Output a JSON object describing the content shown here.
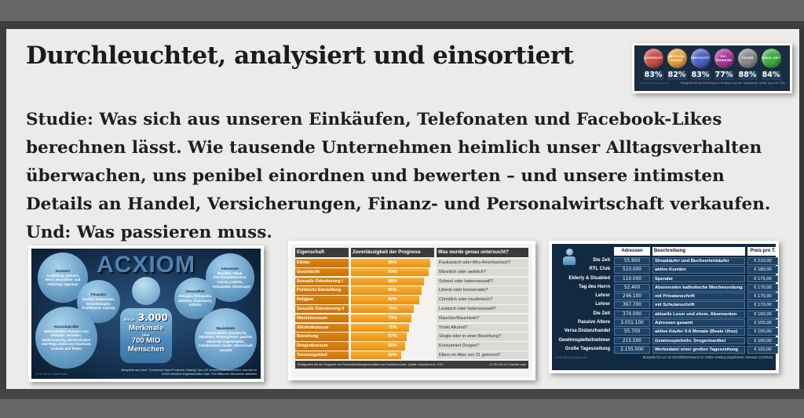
{
  "page": {
    "title": "Durchleuchtet, analysiert und einsortiert",
    "intro": "Studie: Was sich aus unseren Einkäufen, Telefonaten und Facebook-Likes berechnen lässt. Wie tausende Unternehmen heimlich unser Alltagsverhalten überwachen, uns penibel einordnen und bewerten – und unsere intimsten Details an Handel, Versicherungen, Finanz- und Personalwirtschaft verkaufen. Und: Was passieren muss."
  },
  "emotions": {
    "items": [
      {
        "label": "ZUVERSICHT",
        "value": "83%",
        "color": "#c94f4a"
      },
      {
        "label": "UNSCHLÜS- SIGKEIT",
        "value": "82%",
        "color": "#e2a33e"
      },
      {
        "label": "NERVOSITÄT",
        "value": "83%",
        "color": "#4a63c8"
      },
      {
        "label": "ENT- SPANNUNG",
        "value": "77%",
        "color": "#a93a9a"
      },
      {
        "label": "TRAUER",
        "value": "88%",
        "color": "#8b8b8b"
      },
      {
        "label": "MÜDIG- KEIT",
        "value": "84%",
        "color": "#3fad42"
      }
    ],
    "license": "CC BY-SA 3.0 Cracked Labs",
    "caption": "Erfolgsrate bei der Erkennung von Emotionen aus der Tippdynamik. Quelle: Epp et al, 2011"
  },
  "acxiom": {
    "title": "ACXIOM",
    "bubbles": [
      {
        "heading": "Dossiers",
        "body": "Ausbildung, Wohnen, Beruf, Immobilien- und Fahrzeug- eigentum"
      },
      {
        "heading": "Finanzen",
        "body": "Bonität, Einkommen, Versicherungen, Kreditkarten- nutzung"
      },
      {
        "heading": "Interessen",
        "body": "Rauchen: Tabak, Diät-/Gewichtsverlust, Casino, Lotterie, Gewinnspiele, Glücksspiel"
      },
      {
        "heading": "Gesundheit",
        "body": "Allergien, Orthopädie, Diabetes, Cholesterin, Arthritis"
      },
      {
        "heading": "Konsumprofile",
        "body": "Wahlverhalten, Konsum- und Einkaufs- verhalten, Mediennutzung, Reiseverhalten und Flüge, Daten von Facebook, Linkedin und Twitter"
      },
      {
        "heading": "Basisdaten",
        "body": "Geburtsdatum, Geschlecht, Sehstärke, Körpergrösse/ -gewicht, ethnische Zugehörigkeit, Familienstand, Kinder, Elternschaft erwartet"
      }
    ],
    "center": {
      "small1": "Bis zu",
      "big": "3.000",
      "line2": "Merkmale",
      "small2": "über",
      "line3": "700 MIO",
      "line4": "Menschen"
    },
    "caption": "Beispiele aus dem \"Consumer Data Products Catalog\" des US-Unternehmens Acxiom, das bis zu 3.000 einzelne Eigenschaften über 700 Millionen Menschen anbietet",
    "license": "CC BY-SA 3.0 Cracked Labs"
  },
  "likes": {
    "headers": [
      "Eigenschaft",
      "Zuverlässigkeit der Prognose",
      "Was wurde genau untersucht?"
    ],
    "rows": [
      {
        "label": "Ethnie",
        "value": 95,
        "pct": "95%",
        "question": "Kaukasisch oder Afro-Amerikanisch?"
      },
      {
        "label": "Geschlecht",
        "value": 93,
        "pct": "93%",
        "question": "Männlich oder weiblich?"
      },
      {
        "label": "Sexuelle Orientierung I",
        "value": 88,
        "pct": "88%",
        "question": "Schwul oder heterosexuell?"
      },
      {
        "label": "Politische Einstellung",
        "value": 85,
        "pct": "85%",
        "question": "Liberal oder konservativ?"
      },
      {
        "label": "Religion",
        "value": 82,
        "pct": "82%",
        "question": "Christlich oder muslimisch?"
      },
      {
        "label": "Sexuelle Orientierung II",
        "value": 75,
        "pct": "75%",
        "question": "Lesbisch oder heterosexuell?"
      },
      {
        "label": "Nikotinkonsum",
        "value": 73,
        "pct": "73%",
        "question": "Raucher/Raucherin?"
      },
      {
        "label": "Alkoholkonsum",
        "value": 70,
        "pct": "70%",
        "question": "Trinkt Alkohol?"
      },
      {
        "label": "Beziehung",
        "value": 67,
        "pct": "67%",
        "question": "Single oder in einer Beziehung?"
      },
      {
        "label": "Drogenkonsum",
        "value": 65,
        "pct": "65%",
        "question": "Konsumiert Drogen?"
      },
      {
        "label": "Trennungskind",
        "value": 60,
        "pct": "60%",
        "question": "Eltern im Alter von 21 getrennt?"
      }
    ],
    "caption": "Erfolgsraten bei der Prognose von Persönlichkeitseigenschaften aus Facebook-Likes. Quelle: Kosinski et al, 2013",
    "license": "CC BY-SA 3.0 Cracked Labs"
  },
  "addresses": {
    "headers": {
      "count": "Adressen",
      "desc": "Beschreibung",
      "price": "Preis pro T."
    },
    "rows": [
      {
        "name": "Die Zeit",
        "count": "55.900",
        "desc": "Shopkäufer und Buchserienkäufer",
        "price": "€ 210,00"
      },
      {
        "name": "RTL Club",
        "count": "510.000",
        "desc": "aktive Kunden",
        "price": "€ 180,00"
      },
      {
        "name": "Elderly & Disabled",
        "count": "110.000",
        "desc": "Spender",
        "price": "€ 175,00"
      },
      {
        "name": "Tag des Herrn",
        "count": "52.400",
        "desc": "Abonnenten katholische Wochenzeitung",
        "price": "€ 170,00"
      },
      {
        "name": "Lehrer",
        "count": "246.100",
        "desc": "mit Privatanschrift",
        "price": "€ 170,00"
      },
      {
        "name": "Lehrer",
        "count": "367.700",
        "desc": "mit Schulanschrift",
        "price": "€ 170,00"
      },
      {
        "name": "Die Zeit",
        "count": "374.000",
        "desc": "aktuelle Leser und ehem. Abonnenten",
        "price": "€ 160,00"
      },
      {
        "name": "Passive Ältere",
        "count": "3.051.100",
        "desc": "Adressen gesamt",
        "price": "€ 155,00"
      },
      {
        "name": "Versa Distanzhandel",
        "count": "55.700",
        "desc": "aktive Käufer 0-6 Monate (Beate Uhse)",
        "price": "€ 150,00"
      },
      {
        "name": "Gewinnspielteilnehmer",
        "count": "215.500",
        "desc": "Gewinnspielteiln. Drogerieartikel",
        "price": "€ 150,00"
      },
      {
        "name": "Große Tageszeitung",
        "count": "2.155.000",
        "desc": "Werbedatei einer großen Tageszeitung",
        "price": "€ 110,00"
      }
    ],
    "caption": "Beispiele für von AZ Direkt/Bertelsmann im Online-Katalog angebotene Adressen (11/2014)",
    "license": "CC BY-SA 3.0 Cracked Labs"
  },
  "chart_data": [
    {
      "type": "bar",
      "orientation": "horizontal",
      "title": "Erfolgsraten bei der Prognose von Persönlichkeitseigenschaften aus Facebook-Likes. Quelle: Kosinski et al, 2013",
      "categories": [
        "Ethnie",
        "Geschlecht",
        "Sexuelle Orientierung I",
        "Politische Einstellung",
        "Religion",
        "Sexuelle Orientierung II",
        "Nikotinkonsum",
        "Alkoholkonsum",
        "Beziehung",
        "Drogenkonsum",
        "Trennungskind"
      ],
      "values": [
        95,
        93,
        88,
        85,
        82,
        75,
        73,
        70,
        67,
        65,
        60
      ],
      "xlabel": "Zuverlässigkeit der Prognose",
      "ylabel": "Eigenschaft",
      "xlim": [
        0,
        100
      ],
      "annotations": [
        "Kaukasisch oder Afro-Amerikanisch?",
        "Männlich oder weiblich?",
        "Schwul oder heterosexuell?",
        "Liberal oder konservativ?",
        "Christlich oder muslimisch?",
        "Lesbisch oder heterosexuell?",
        "Raucher/Raucherin?",
        "Trinkt Alkohol?",
        "Single oder in einer Beziehung?",
        "Konsumiert Drogen?",
        "Eltern im Alter von 21 getrennt?"
      ]
    },
    {
      "type": "bar",
      "title": "Erfolgsrate bei der Erkennung von Emotionen aus der Tippdynamik. Quelle: Epp et al, 2011",
      "categories": [
        "Zuversicht",
        "Unschlüssigkeit",
        "Nervosität",
        "Entspannung",
        "Trauer",
        "Müdigkeit"
      ],
      "values": [
        83,
        82,
        83,
        77,
        88,
        84
      ],
      "xlim": [
        0,
        100
      ]
    }
  ]
}
